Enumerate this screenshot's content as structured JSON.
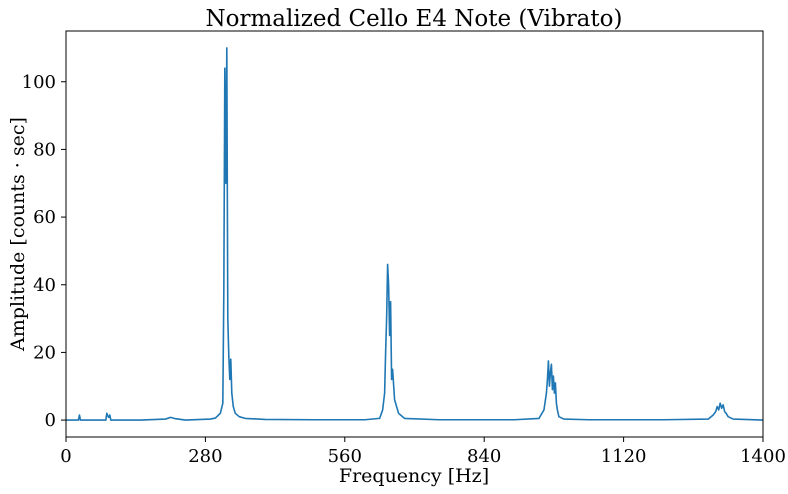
{
  "chart_data": {
    "type": "line",
    "title": "Normalized Cello E4 Note (Vibrato)",
    "xlabel": "Frequency [Hz]",
    "ylabel": "Amplitude [counts · sec]",
    "xlim": [
      0,
      1400
    ],
    "ylim": [
      -5,
      115
    ],
    "xticks": [
      0,
      280,
      560,
      840,
      1120,
      1400
    ],
    "yticks": [
      0,
      20,
      40,
      60,
      80,
      100
    ],
    "xtick_labels": [
      "0",
      "280",
      "560",
      "840",
      "1120",
      "1400"
    ],
    "ytick_labels": [
      "0",
      "20",
      "40",
      "60",
      "80",
      "100"
    ],
    "grid": false,
    "legend": "none",
    "series": [
      {
        "color": "#1f77b4",
        "x": [
          0,
          25,
          27,
          29,
          80,
          82,
          84,
          86,
          88,
          90,
          150,
          200,
          210,
          220,
          240,
          290,
          300,
          310,
          315,
          317,
          319,
          321,
          323,
          325,
          327,
          329,
          331,
          333,
          336,
          340,
          348,
          360,
          400,
          500,
          600,
          630,
          636,
          640,
          642,
          644,
          646,
          648,
          650,
          652,
          654,
          656,
          660,
          668,
          680,
          750,
          900,
          950,
          960,
          965,
          967,
          969,
          971,
          973,
          975,
          977,
          979,
          981,
          983,
          985,
          987,
          990,
          1000,
          1050,
          1200,
          1290,
          1300,
          1305,
          1308,
          1311,
          1314,
          1317,
          1320,
          1323,
          1326,
          1330,
          1340,
          1400
        ],
        "values": [
          0,
          0,
          1.5,
          0,
          0,
          2.0,
          1.2,
          0.8,
          1.5,
          0,
          0,
          0.3,
          0.8,
          0.4,
          0,
          0.3,
          0.6,
          2.0,
          5,
          38,
          104,
          70,
          110,
          30,
          19,
          12,
          18,
          8,
          4,
          2,
          1,
          0.5,
          0.2,
          0.1,
          0.1,
          0.5,
          3,
          8,
          20,
          30,
          46,
          40,
          25,
          35,
          12,
          15,
          6,
          2,
          0.5,
          0.1,
          0.1,
          0.5,
          3,
          8,
          12,
          17.5,
          10,
          14,
          16.5,
          9,
          13,
          8,
          11,
          5,
          3,
          1,
          0.3,
          0.1,
          0.1,
          0.3,
          1.5,
          2.5,
          4,
          3,
          5,
          3.5,
          4.5,
          2.5,
          2,
          1,
          0.3,
          0
        ]
      }
    ]
  }
}
